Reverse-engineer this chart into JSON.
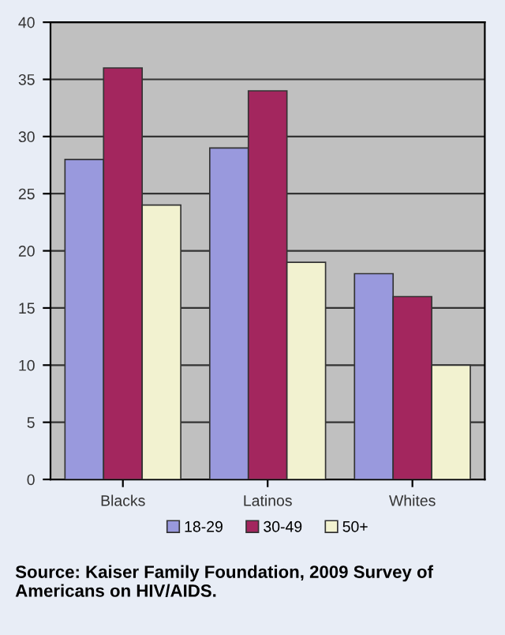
{
  "chart_data": {
    "type": "bar",
    "categories": [
      "Blacks",
      "Latinos",
      "Whites"
    ],
    "series": [
      {
        "name": "18-29",
        "color": "#9999dd",
        "values": [
          28,
          29,
          18
        ]
      },
      {
        "name": "30-49",
        "color": "#a3265e",
        "values": [
          36,
          34,
          16
        ]
      },
      {
        "name": "50+",
        "color": "#f2f2d0",
        "values": [
          24,
          19,
          10
        ]
      }
    ],
    "ylim": [
      0,
      40
    ],
    "yticks": [
      0,
      5,
      10,
      15,
      20,
      25,
      30,
      35,
      40
    ],
    "grid": "y",
    "legend": "bottom",
    "annotations": [
      "Source: Kaiser Family Foundation, 2009 Survey of Americans on HIV/AIDS."
    ]
  }
}
